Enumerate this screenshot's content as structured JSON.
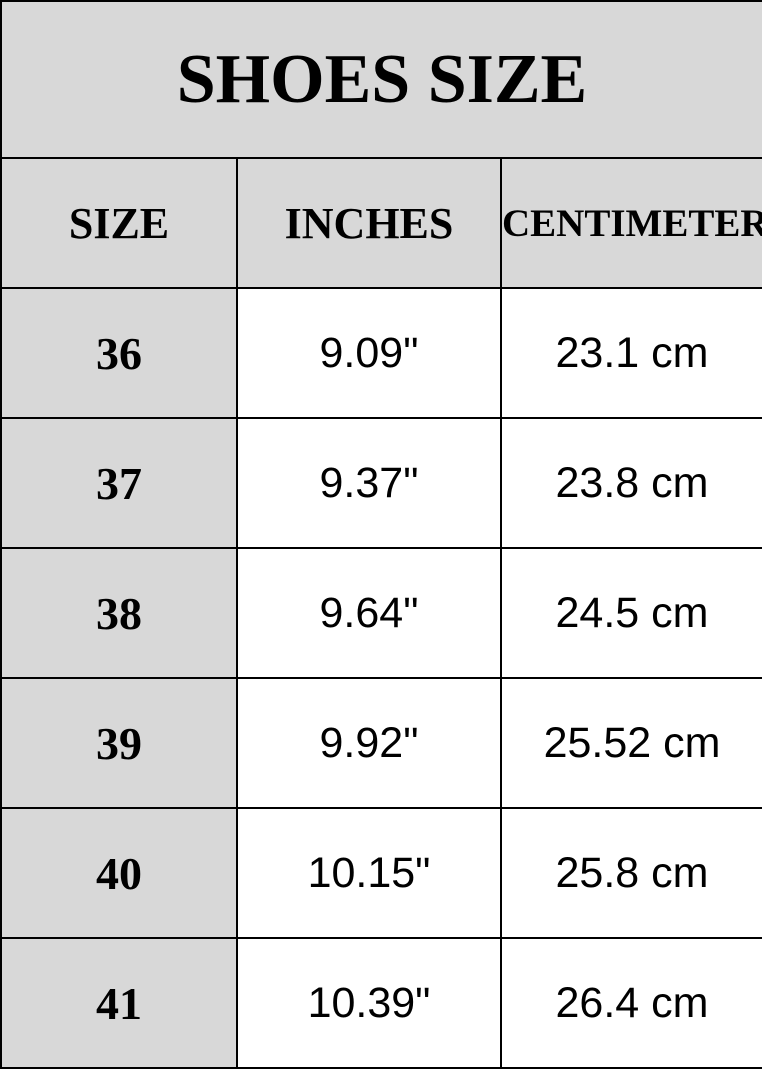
{
  "title": "SHOES SIZE",
  "table": {
    "headers": {
      "size": "SIZE",
      "inches": "INCHES",
      "centimeter": "CENTIMETER"
    },
    "rows": [
      {
        "size": "36",
        "inches": "9.09\"",
        "cm": "23.1 cm"
      },
      {
        "size": "37",
        "inches": "9.37\"",
        "cm": "23.8 cm"
      },
      {
        "size": "38",
        "inches": "9.64\"",
        "cm": "24.5 cm"
      },
      {
        "size": "39",
        "inches": "9.92\"",
        "cm": "25.52 cm"
      },
      {
        "size": "40",
        "inches": "10.15\"",
        "cm": "25.8 cm"
      },
      {
        "size": "41",
        "inches": "10.39\"",
        "cm": "26.4 cm"
      }
    ]
  },
  "colors": {
    "shaded_bg": "#d8d8d8",
    "row_bg": "#ffffff",
    "border": "#000000",
    "text": "#000000"
  },
  "chart_data": {
    "type": "table",
    "title": "SHOES SIZE",
    "columns": [
      "SIZE",
      "INCHES",
      "CENTIMETER"
    ],
    "rows": [
      [
        "36",
        "9.09\"",
        "23.1 cm"
      ],
      [
        "37",
        "9.37\"",
        "23.8 cm"
      ],
      [
        "38",
        "9.64\"",
        "24.5 cm"
      ],
      [
        "39",
        "9.92\"",
        "25.52 cm"
      ],
      [
        "40",
        "10.15\"",
        "25.8 cm"
      ],
      [
        "41",
        "10.39\"",
        "26.4 cm"
      ]
    ]
  }
}
